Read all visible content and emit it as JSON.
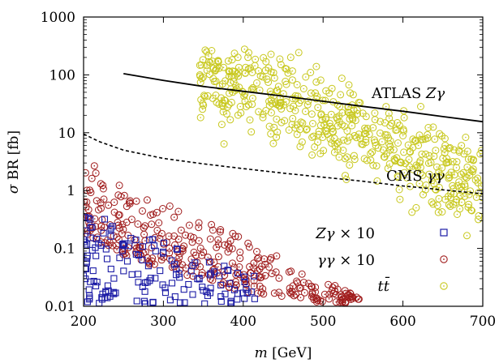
{
  "chart_data": {
    "type": "scatter",
    "xlabel": "m [GeV]",
    "ylabel": "σ BR [fb]",
    "xlim": [
      200,
      700
    ],
    "ylim": [
      0.01,
      1000
    ],
    "yscale": "log",
    "xticks": [
      "200",
      "300",
      "400",
      "500",
      "600",
      "700"
    ],
    "yticks": [
      "0.01",
      "0.1",
      "1",
      "10",
      "100",
      "1000"
    ],
    "grid": false,
    "legend_position": "bottom-right",
    "lines": [
      {
        "name": "ATLAS Zγ",
        "style": "solid",
        "x": [
          250,
          300,
          350,
          400,
          450,
          500,
          550,
          600,
          650,
          700
        ],
        "y": [
          105,
          80,
          63,
          52,
          43,
          35,
          28.5,
          23.5,
          19,
          15.5
        ]
      },
      {
        "name": "CMS γγ",
        "style": "dashed",
        "x": [
          200,
          220,
          250,
          300,
          350,
          400,
          450,
          500,
          550,
          600,
          650,
          700
        ],
        "y": [
          9.5,
          7,
          5,
          3.6,
          2.9,
          2.4,
          2,
          1.7,
          1.45,
          1.2,
          1.03,
          0.88
        ]
      }
    ],
    "series": [
      {
        "name": "Zγ × 10",
        "marker": "square",
        "color": "#1c1ca6",
        "x_range": [
          200,
          420
        ],
        "y_range": [
          0.01,
          0.5
        ],
        "points_estimated": 160
      },
      {
        "name": "γγ × 10",
        "marker": "circle-dot",
        "color": "#a01c1c",
        "x_range": [
          200,
          545
        ],
        "y_range": [
          0.01,
          4.5
        ],
        "points_estimated": 330
      },
      {
        "name": "tt̄",
        "marker": "circle-dot",
        "color": "#c8c81e",
        "x_range": [
          345,
          700
        ],
        "y_range": [
          0.1,
          300
        ],
        "points_estimated": 520
      }
    ],
    "annotations": [
      "ATLAS Zγ",
      "CMS γγ"
    ]
  },
  "legend": {
    "entries": [
      {
        "label": "Zγ  × 10"
      },
      {
        "label": "γγ × 10"
      },
      {
        "label": "tt̄"
      }
    ]
  },
  "colors": {
    "zg": "#1c1ca6",
    "gg": "#a01c1c",
    "tt": "#c8c81e",
    "axes": "#000000"
  }
}
